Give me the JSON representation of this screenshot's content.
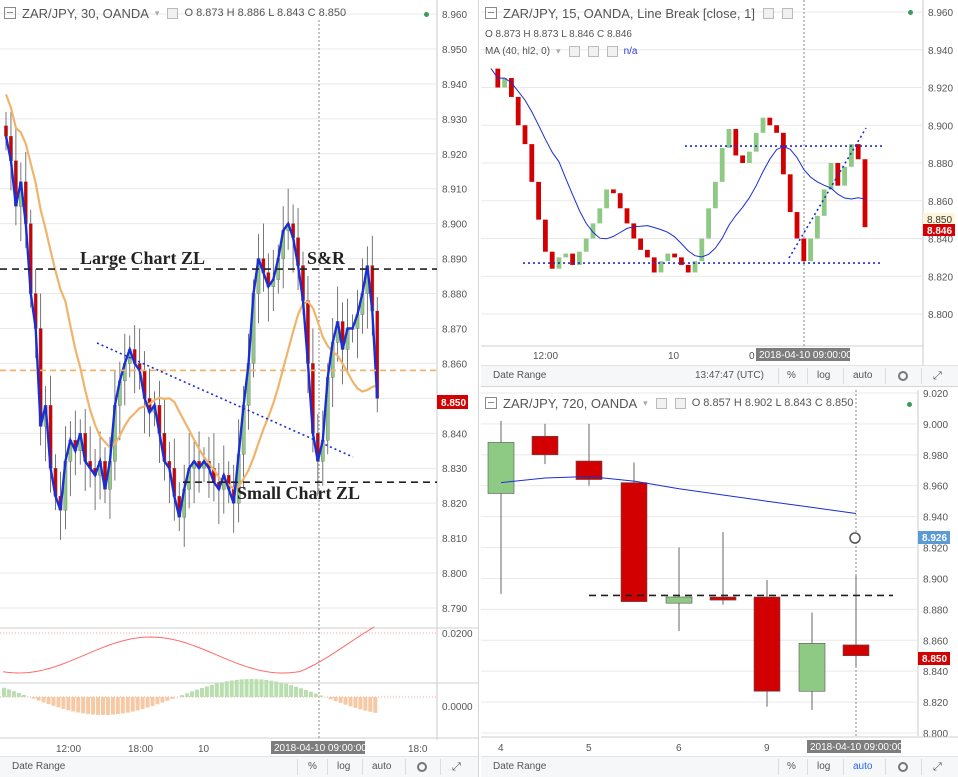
{
  "colors": {
    "up": "#8fca85",
    "down": "#d20000",
    "ma_orange": "#f0b46a",
    "blue": "#1a2ed6",
    "red_line": "#ff6b6b",
    "grid": "#e9e9e9"
  },
  "left": {
    "title": "ZAR/JPY, 30, OANDA",
    "ohlc": {
      "o": "O 8.873",
      "h": "H 8.886",
      "l": "L 8.843",
      "c": "C 8.850"
    },
    "price_tag": "8.850",
    "crosshair_label": "2018-04-10 09:00:00",
    "labels": [
      "Large Chart ZL",
      "S&R",
      "Small Chart ZL"
    ],
    "footer": {
      "date_range": "Date Range",
      "pct": "%",
      "log": "log",
      "auto": "auto"
    },
    "chart_data": {
      "type": "candlestick",
      "ylim": [
        8.784,
        8.965
      ],
      "y_ticks": [
        "8.960",
        "8.950",
        "8.940",
        "8.930",
        "8.920",
        "8.910",
        "8.900",
        "8.890",
        "8.880",
        "8.870",
        "8.860",
        "8.850",
        "8.840",
        "8.830",
        "8.820",
        "8.810",
        "8.800",
        "8.790"
      ],
      "x_ticks": [
        "12:00",
        "18:00",
        "10",
        "18:0"
      ],
      "close": [
        8.925,
        8.918,
        8.905,
        8.912,
        8.9,
        8.88,
        8.87,
        8.842,
        8.848,
        8.83,
        8.822,
        8.818,
        8.832,
        8.838,
        8.835,
        8.84,
        8.832,
        8.83,
        8.828,
        8.832,
        8.824,
        8.832,
        8.848,
        8.855,
        8.86,
        8.864,
        8.86,
        8.858,
        8.85,
        8.846,
        8.848,
        8.84,
        8.832,
        8.83,
        8.822,
        8.816,
        8.824,
        8.83,
        8.832,
        8.83,
        8.832,
        8.83,
        8.826,
        8.824,
        8.828,
        8.824,
        8.82,
        8.834,
        8.848,
        8.86,
        8.88,
        8.89,
        8.886,
        8.882,
        8.884,
        8.89,
        8.898,
        8.9,
        8.896,
        8.888,
        8.878,
        8.86,
        8.84,
        8.832,
        8.838,
        8.856,
        8.866,
        8.872,
        8.864,
        8.87,
        8.87,
        8.874,
        8.88,
        8.888,
        8.875,
        8.85
      ],
      "sr_level": 8.887,
      "small_zl_level": 8.826,
      "ma_orange_level": 8.858,
      "osc_level": "0.0200",
      "hist_level": "0.0000"
    }
  },
  "right_top": {
    "title": "ZAR/JPY, 15, OANDA, Line Break [close, 1]",
    "ohlc": {
      "o": "O 8.873",
      "h": "H 8.873",
      "l": "L 8.846",
      "c": "C 8.846"
    },
    "ma_label": "MA (40, hl2, 0)",
    "ma_value": "n/a",
    "price_tag_1": "8.850",
    "price_tag_2": "8.846",
    "crosshair_label": "2018-04-10 09:00:00",
    "time_label": "13:47:47 (UTC)",
    "footer": {
      "date_range": "Date Range",
      "pct": "%",
      "log": "log",
      "auto": "auto"
    },
    "chart_data": {
      "type": "line_break",
      "ylim": [
        8.785,
        8.965
      ],
      "y_ticks": [
        "8.960",
        "8.940",
        "8.920",
        "8.900",
        "8.880",
        "8.860",
        "8.840",
        "8.820",
        "8.800"
      ],
      "x_ticks": [
        "12:00",
        "10",
        "0"
      ],
      "closes": [
        8.93,
        8.92,
        8.925,
        8.915,
        8.9,
        8.89,
        8.87,
        8.85,
        8.833,
        8.824,
        8.83,
        8.832,
        8.826,
        8.833,
        8.84,
        8.848,
        8.856,
        8.866,
        8.864,
        8.856,
        8.848,
        8.84,
        8.834,
        8.83,
        8.822,
        8.828,
        8.832,
        8.83,
        8.826,
        8.822,
        8.828,
        8.84,
        8.856,
        8.87,
        8.888,
        8.898,
        8.884,
        8.88,
        8.886,
        8.896,
        8.904,
        8.9,
        8.896,
        8.874,
        8.854,
        8.84,
        8.828,
        8.84,
        8.852,
        8.866,
        8.88,
        8.868,
        8.878,
        8.89,
        8.882,
        8.846
      ],
      "levels": [
        8.889,
        8.827
      ]
    }
  },
  "right_bottom": {
    "title": "ZAR/JPY, 720, OANDA",
    "ohlc": {
      "o": "O 8.857",
      "h": "H 8.902",
      "l": "L 8.843",
      "c": "C 8.850"
    },
    "price_tag_1": "8.926",
    "price_tag_2": "8.850",
    "crosshair_label": "2018-04-10 09:00:00",
    "footer": {
      "date_range": "Date Range",
      "pct": "%",
      "log": "log",
      "auto": "auto"
    },
    "chart_data": {
      "type": "candlestick",
      "ylim": [
        8.795,
        9.022
      ],
      "y_ticks": [
        "9.020",
        "9.000",
        "8.980",
        "8.960",
        "8.940",
        "8.920",
        "8.900",
        "8.880",
        "8.860",
        "8.840",
        "8.820",
        "8.800"
      ],
      "x_ticks": [
        "4",
        "5",
        "6",
        "9"
      ],
      "candles": [
        {
          "o": 8.955,
          "h": 9.002,
          "l": 8.89,
          "c": 8.988
        },
        {
          "o": 8.992,
          "h": 9.0,
          "l": 8.974,
          "c": 8.98
        },
        {
          "o": 8.976,
          "h": 9.0,
          "l": 8.96,
          "c": 8.964
        },
        {
          "o": 8.962,
          "h": 8.975,
          "l": 8.885,
          "c": 8.885
        },
        {
          "o": 8.884,
          "h": 8.92,
          "l": 8.866,
          "c": 8.888
        },
        {
          "o": 8.888,
          "h": 8.93,
          "l": 8.883,
          "c": 8.886
        },
        {
          "o": 8.888,
          "h": 8.899,
          "l": 8.817,
          "c": 8.827
        },
        {
          "o": 8.827,
          "h": 8.878,
          "l": 8.815,
          "c": 8.858
        },
        {
          "o": 8.857,
          "h": 8.902,
          "l": 8.843,
          "c": 8.85
        }
      ],
      "level": 8.889,
      "ma": [
        8.962,
        8.965,
        8.966,
        8.963,
        8.958,
        8.954,
        8.95,
        8.946,
        8.942
      ]
    }
  }
}
